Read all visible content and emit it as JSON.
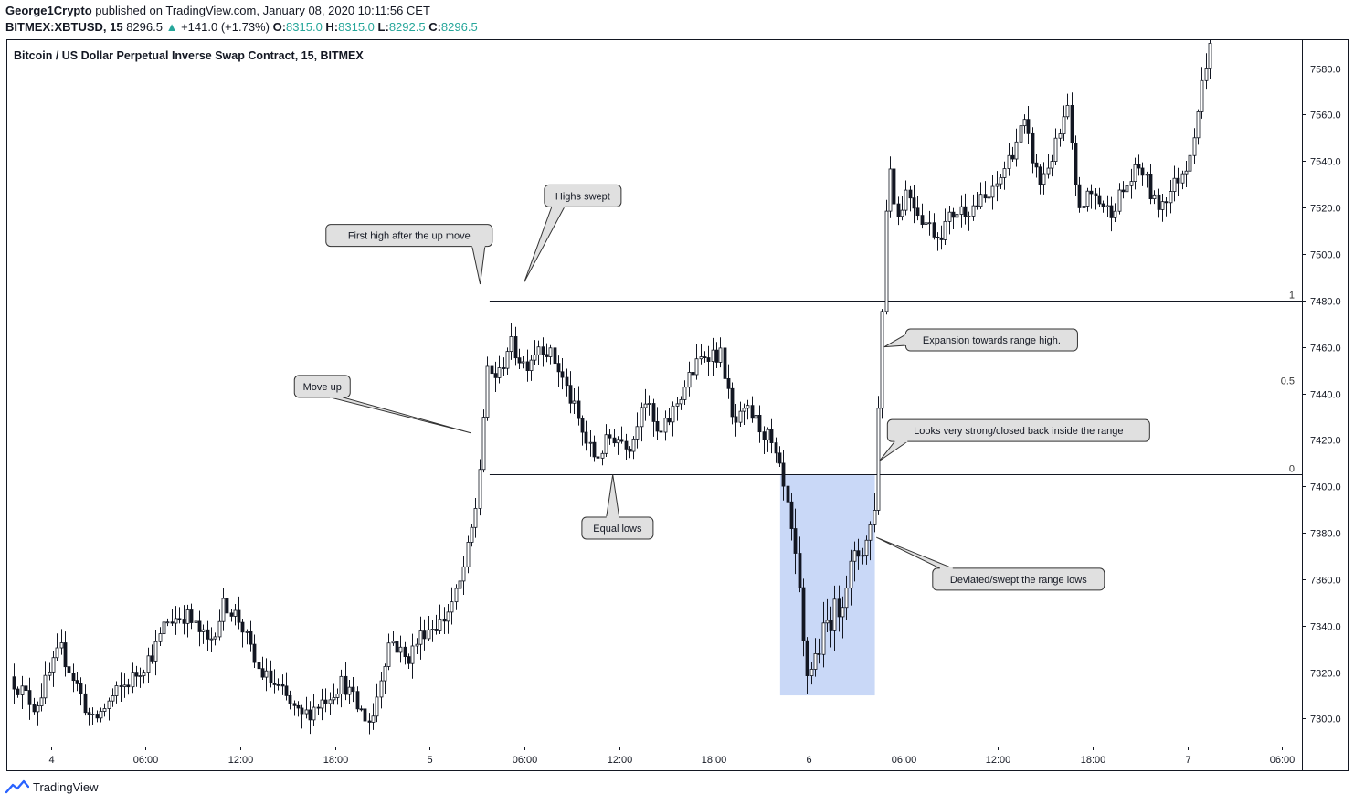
{
  "header": {
    "publisher": "George1Crypto",
    "published_text": "published on TradingView.com, January 08, 2020 10:11:56 CET",
    "symbol": "BITMEX:XBTUSD, 15",
    "last": "8296.5",
    "change_arrow": "▲",
    "change": "+141.0 (+1.73%)",
    "o_label": "O:",
    "o_value": "8315.0",
    "h_label": "H:",
    "h_value": "8315.0",
    "l_label": "L:",
    "l_value": "8292.5",
    "c_label": "C:",
    "c_value": "8296.5"
  },
  "footer": {
    "brand": "TradingView"
  },
  "colors": {
    "accent_green": "#26a69a",
    "box_fill": "#c9d8f7",
    "brand_blue": "#2962ff"
  },
  "chart_data": {
    "type": "candlestick",
    "title": "Bitcoin / US Dollar Perpetual Inverse Swap Contract, 15, BITMEX",
    "ylim": [
      7288,
      7592
    ],
    "y_ticks": [
      7300,
      7320,
      7340,
      7360,
      7380,
      7400,
      7420,
      7440,
      7460,
      7480,
      7500,
      7520,
      7540,
      7560,
      7580
    ],
    "x_ticks": [
      "4",
      "06:00",
      "12:00",
      "18:00",
      "5",
      "06:00",
      "12:00",
      "18:00",
      "6",
      "06:00",
      "12:00",
      "18:00",
      "7",
      "06:00"
    ],
    "x_tick_hours": [
      0,
      6,
      12,
      18,
      24,
      30,
      36,
      42,
      48,
      54,
      60,
      66,
      72,
      78
    ],
    "xlim_hours": [
      -2.75,
      79.25
    ],
    "fib_levels": [
      {
        "label": "1",
        "price": 7480,
        "start_hour": 27.8
      },
      {
        "label": "0.5",
        "price": 7443,
        "start_hour": 27.8
      },
      {
        "label": "0",
        "price": 7405,
        "start_hour": 27.8
      }
    ],
    "range_box": {
      "start_hour": 46.2,
      "end_hour": 52.2,
      "low": 7310,
      "high": 7405
    },
    "anchors": [
      {
        "h": -2.6,
        "p": 7318
      },
      {
        "h": -1.0,
        "p": 7305
      },
      {
        "h": 0.6,
        "p": 7330
      },
      {
        "h": 1.6,
        "p": 7315
      },
      {
        "h": 2.6,
        "p": 7298
      },
      {
        "h": 4.0,
        "p": 7310
      },
      {
        "h": 5.5,
        "p": 7320
      },
      {
        "h": 6.6,
        "p": 7330
      },
      {
        "h": 7.3,
        "p": 7342
      },
      {
        "h": 8.5,
        "p": 7345
      },
      {
        "h": 10.0,
        "p": 7332
      },
      {
        "h": 11.0,
        "p": 7350
      },
      {
        "h": 12.0,
        "p": 7342
      },
      {
        "h": 13.0,
        "p": 7322
      },
      {
        "h": 14.5,
        "p": 7312
      },
      {
        "h": 15.8,
        "p": 7300
      },
      {
        "h": 17.2,
        "p": 7308
      },
      {
        "h": 18.5,
        "p": 7316
      },
      {
        "h": 19.4,
        "p": 7305
      },
      {
        "h": 20.3,
        "p": 7298
      },
      {
        "h": 21.0,
        "p": 7322
      },
      {
        "h": 21.5,
        "p": 7335
      },
      {
        "h": 22.5,
        "p": 7325
      },
      {
        "h": 23.6,
        "p": 7338
      },
      {
        "h": 24.8,
        "p": 7342
      },
      {
        "h": 25.8,
        "p": 7355
      },
      {
        "h": 26.5,
        "p": 7375
      },
      {
        "h": 27.0,
        "p": 7395
      },
      {
        "h": 27.6,
        "p": 7448
      },
      {
        "h": 28.4,
        "p": 7448
      },
      {
        "h": 29.0,
        "p": 7462
      },
      {
        "h": 30.0,
        "p": 7452
      },
      {
        "h": 31.0,
        "p": 7462
      },
      {
        "h": 32.0,
        "p": 7453
      },
      {
        "h": 33.0,
        "p": 7436
      },
      {
        "h": 33.8,
        "p": 7420
      },
      {
        "h": 34.5,
        "p": 7412
      },
      {
        "h": 35.5,
        "p": 7422
      },
      {
        "h": 36.8,
        "p": 7418
      },
      {
        "h": 37.5,
        "p": 7440
      },
      {
        "h": 38.5,
        "p": 7420
      },
      {
        "h": 39.5,
        "p": 7434
      },
      {
        "h": 40.5,
        "p": 7448
      },
      {
        "h": 41.5,
        "p": 7458
      },
      {
        "h": 42.5,
        "p": 7456
      },
      {
        "h": 43.2,
        "p": 7426
      },
      {
        "h": 44.2,
        "p": 7432
      },
      {
        "h": 45.5,
        "p": 7420
      },
      {
        "h": 46.2,
        "p": 7405
      },
      {
        "h": 46.8,
        "p": 7385
      },
      {
        "h": 47.4,
        "p": 7352
      },
      {
        "h": 47.8,
        "p": 7318
      },
      {
        "h": 48.5,
        "p": 7328
      },
      {
        "h": 49.2,
        "p": 7342
      },
      {
        "h": 49.9,
        "p": 7348
      },
      {
        "h": 50.5,
        "p": 7362
      },
      {
        "h": 51.2,
        "p": 7372
      },
      {
        "h": 51.8,
        "p": 7378
      },
      {
        "h": 52.3,
        "p": 7400
      },
      {
        "h": 52.5,
        "p": 7465
      },
      {
        "h": 52.8,
        "p": 7492
      },
      {
        "h": 53.0,
        "p": 7545
      },
      {
        "h": 53.6,
        "p": 7515
      },
      {
        "h": 54.2,
        "p": 7528
      },
      {
        "h": 55.2,
        "p": 7515
      },
      {
        "h": 56.2,
        "p": 7508
      },
      {
        "h": 57.2,
        "p": 7518
      },
      {
        "h": 58.2,
        "p": 7520
      },
      {
        "h": 59.6,
        "p": 7525
      },
      {
        "h": 60.6,
        "p": 7540
      },
      {
        "h": 61.6,
        "p": 7556
      },
      {
        "h": 62.6,
        "p": 7530
      },
      {
        "h": 63.6,
        "p": 7545
      },
      {
        "h": 64.4,
        "p": 7562
      },
      {
        "h": 65.0,
        "p": 7520
      },
      {
        "h": 66.0,
        "p": 7526
      },
      {
        "h": 67.0,
        "p": 7518
      },
      {
        "h": 68.0,
        "p": 7528
      },
      {
        "h": 69.0,
        "p": 7538
      },
      {
        "h": 70.0,
        "p": 7520
      },
      {
        "h": 71.0,
        "p": 7528
      },
      {
        "h": 72.0,
        "p": 7540
      },
      {
        "h": 72.6,
        "p": 7560
      },
      {
        "h": 73.2,
        "p": 7585
      },
      {
        "h": 73.6,
        "p": 7592
      }
    ],
    "annotations": [
      {
        "id": "first-high",
        "text": "First high after the up move",
        "price": 7508,
        "hour": 22.7,
        "tip_hour": 27.2,
        "tip_price": 7487
      },
      {
        "id": "highs-swept",
        "text": "Highs swept",
        "price": 7525,
        "hour": 33.7,
        "tip_hour": 30.0,
        "tip_price": 7488
      },
      {
        "id": "move-up",
        "text": "Move up",
        "price": 7443,
        "hour": 17.2,
        "tip_hour": 26.6,
        "tip_price": 7423
      },
      {
        "id": "equal-lows",
        "text": "Equal lows",
        "price": 7382,
        "hour": 35.9,
        "tip_hour": 35.6,
        "tip_price": 7405
      },
      {
        "id": "expansion",
        "text": "Expansion towards range high.",
        "price": 7463,
        "hour": 59.6,
        "tip_hour": 52.8,
        "tip_price": 7460
      },
      {
        "id": "looks-strong",
        "text": "Looks very strong/closed back inside the range",
        "price": 7424,
        "hour": 61.3,
        "tip_hour": 52.5,
        "tip_price": 7411
      },
      {
        "id": "deviated",
        "text": "Deviated/swept the range lows",
        "price": 7360,
        "hour": 61.3,
        "tip_hour": 52.3,
        "tip_price": 7378
      }
    ]
  }
}
